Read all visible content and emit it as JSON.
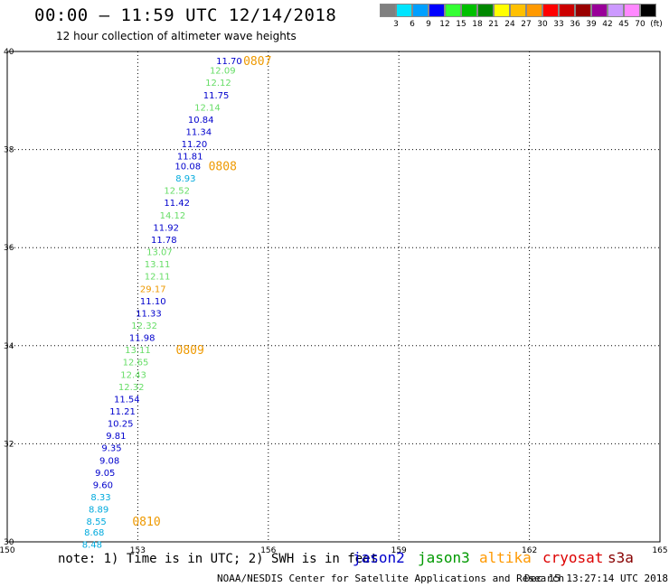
{
  "header": {
    "title": "00:00 – 11:59 UTC 12/14/2018",
    "subtitle": "12 hour collection of altimeter wave heights"
  },
  "scale": {
    "labels": [
      "3",
      "6",
      "9",
      "12",
      "15",
      "18",
      "21",
      "24",
      "27",
      "30",
      "33",
      "36",
      "39",
      "42",
      "45",
      "70",
      "(ft)"
    ],
    "colors": [
      "#808080",
      "#00e5ff",
      "#00a0ff",
      "#0000ff",
      "#33ff33",
      "#00c000",
      "#008800",
      "#ffff00",
      "#ffc000",
      "#ff9900",
      "#ff0000",
      "#cc0000",
      "#990000",
      "#990099",
      "#cc99ff",
      "#ff88ff",
      "#000000"
    ]
  },
  "footer": {
    "note": "note: 1) Time is in UTC; 2) SWH is in feet",
    "credit": "NOAA/NESDIS Center for Satellite Applications and Research",
    "timestamp": "Dec 15 13:27:14 UTC 2018"
  },
  "legend": [
    {
      "label": "jason2",
      "color": "#0000cc"
    },
    {
      "label": "jason3",
      "color": "#009900"
    },
    {
      "label": "altika",
      "color": "#ff9900"
    },
    {
      "label": "cryosat",
      "color": "#dd0000"
    },
    {
      "label": "s3a",
      "color": "#880000"
    }
  ],
  "chart_data": {
    "type": "scatter",
    "title": "00:00 – 11:59 UTC 12/14/2018",
    "subtitle": "12 hour collection of altimeter wave heights",
    "xlabel": "",
    "ylabel": "",
    "xlim": [
      150,
      165
    ],
    "ylim": [
      30,
      40
    ],
    "xticks": [
      "150",
      "153",
      "156",
      "159",
      "162",
      "165"
    ],
    "yticks": [
      "30",
      "32",
      "34",
      "36",
      "38",
      "40"
    ],
    "grid": true,
    "wave_heights": [
      {
        "lon": 155.1,
        "lat": 39.82,
        "value": "11.70",
        "color": "#0000cc"
      },
      {
        "lon": 154.95,
        "lat": 39.62,
        "value": "12.09",
        "color": "#66dd66"
      },
      {
        "lon": 154.85,
        "lat": 39.37,
        "value": "12.12",
        "color": "#66dd66"
      },
      {
        "lon": 154.8,
        "lat": 39.12,
        "value": "11.75",
        "color": "#0000cc"
      },
      {
        "lon": 154.6,
        "lat": 38.87,
        "value": "12.14",
        "color": "#66dd66"
      },
      {
        "lon": 154.45,
        "lat": 38.62,
        "value": "10.84",
        "color": "#0000cc"
      },
      {
        "lon": 154.4,
        "lat": 38.37,
        "value": "11.34",
        "color": "#0000cc"
      },
      {
        "lon": 154.3,
        "lat": 38.12,
        "value": "11.20",
        "color": "#0000cc"
      },
      {
        "lon": 154.2,
        "lat": 37.87,
        "value": "11.81",
        "color": "#0000cc"
      },
      {
        "lon": 154.15,
        "lat": 37.67,
        "value": "10.08",
        "color": "#0000cc"
      },
      {
        "lon": 154.1,
        "lat": 37.42,
        "value": "8.93",
        "color": "#00aadd"
      },
      {
        "lon": 153.9,
        "lat": 37.17,
        "value": "12.52",
        "color": "#66dd66"
      },
      {
        "lon": 153.9,
        "lat": 36.92,
        "value": "11.42",
        "color": "#0000cc"
      },
      {
        "lon": 153.8,
        "lat": 36.67,
        "value": "14.12",
        "color": "#66dd66"
      },
      {
        "lon": 153.65,
        "lat": 36.42,
        "value": "11.92",
        "color": "#0000cc"
      },
      {
        "lon": 153.6,
        "lat": 36.17,
        "value": "11.78",
        "color": "#0000cc"
      },
      {
        "lon": 153.5,
        "lat": 35.92,
        "value": "13.07",
        "color": "#66dd66"
      },
      {
        "lon": 153.45,
        "lat": 35.67,
        "value": "13.11",
        "color": "#66dd66"
      },
      {
        "lon": 153.45,
        "lat": 35.42,
        "value": "12.11",
        "color": "#66dd66"
      },
      {
        "lon": 153.35,
        "lat": 35.17,
        "value": "29.17",
        "color": "#ee9900"
      },
      {
        "lon": 153.35,
        "lat": 34.92,
        "value": "11.10",
        "color": "#0000cc"
      },
      {
        "lon": 153.25,
        "lat": 34.67,
        "value": "11.33",
        "color": "#0000cc"
      },
      {
        "lon": 153.15,
        "lat": 34.42,
        "value": "12.32",
        "color": "#66dd66"
      },
      {
        "lon": 153.1,
        "lat": 34.17,
        "value": "11.98",
        "color": "#0000cc"
      },
      {
        "lon": 153.0,
        "lat": 33.92,
        "value": "13.11",
        "color": "#66dd66"
      },
      {
        "lon": 152.95,
        "lat": 33.67,
        "value": "12.65",
        "color": "#66dd66"
      },
      {
        "lon": 152.9,
        "lat": 33.42,
        "value": "12.43",
        "color": "#66dd66"
      },
      {
        "lon": 152.85,
        "lat": 33.17,
        "value": "12.32",
        "color": "#66dd66"
      },
      {
        "lon": 152.75,
        "lat": 32.92,
        "value": "11.54",
        "color": "#0000cc"
      },
      {
        "lon": 152.65,
        "lat": 32.67,
        "value": "11.21",
        "color": "#0000cc"
      },
      {
        "lon": 152.6,
        "lat": 32.42,
        "value": "10.25",
        "color": "#0000cc"
      },
      {
        "lon": 152.5,
        "lat": 32.17,
        "value": "9.81",
        "color": "#0000cc"
      },
      {
        "lon": 152.4,
        "lat": 31.92,
        "value": "9.35",
        "color": "#0000cc"
      },
      {
        "lon": 152.35,
        "lat": 31.67,
        "value": "9.08",
        "color": "#0000cc"
      },
      {
        "lon": 152.25,
        "lat": 31.42,
        "value": "9.05",
        "color": "#0000cc"
      },
      {
        "lon": 152.2,
        "lat": 31.17,
        "value": "9.60",
        "color": "#0000cc"
      },
      {
        "lon": 152.15,
        "lat": 30.92,
        "value": "8.33",
        "color": "#00aadd"
      },
      {
        "lon": 152.1,
        "lat": 30.67,
        "value": "8.89",
        "color": "#00aadd"
      },
      {
        "lon": 152.05,
        "lat": 30.42,
        "value": "8.55",
        "color": "#00aadd"
      },
      {
        "lon": 152.0,
        "lat": 30.2,
        "value": "8.68",
        "color": "#00aadd"
      },
      {
        "lon": 151.95,
        "lat": 29.95,
        "value": "8.48",
        "color": "#00aadd"
      }
    ],
    "time_labels": [
      {
        "lon": 155.75,
        "lat": 39.82,
        "label": "0807"
      },
      {
        "lon": 154.95,
        "lat": 37.67,
        "label": "0808"
      },
      {
        "lon": 154.2,
        "lat": 33.92,
        "label": "0809"
      },
      {
        "lon": 153.2,
        "lat": 30.42,
        "label": "0810"
      }
    ]
  }
}
